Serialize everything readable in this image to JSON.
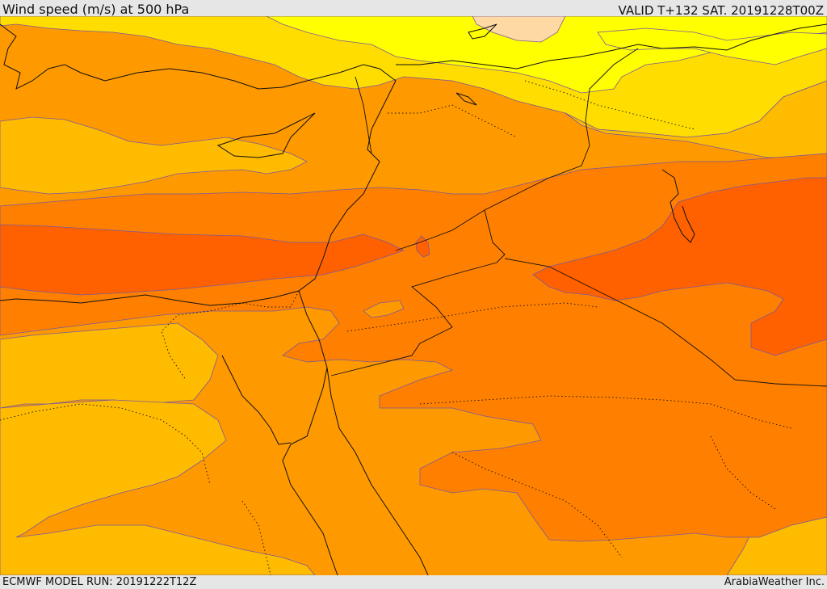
{
  "header": {
    "title": "Wind speed (m/s) at 500 hPa",
    "valid_time": "VALID T+132 SAT. 20191228T00Z"
  },
  "footer": {
    "model_run": "ECMWF MODEL RUN: 20191222T12Z",
    "credit": "ArabiaWeather Inc."
  },
  "colors": {
    "band_0": "#ffd9a3",
    "band_1": "#ffff00",
    "band_2": "#ffdd00",
    "band_3": "#ffbb00",
    "band_4": "#ff9900",
    "band_5": "#ff7f00",
    "band_6": "#ff6000",
    "coastline": "#111111",
    "contour": "#7a5a9a"
  }
}
